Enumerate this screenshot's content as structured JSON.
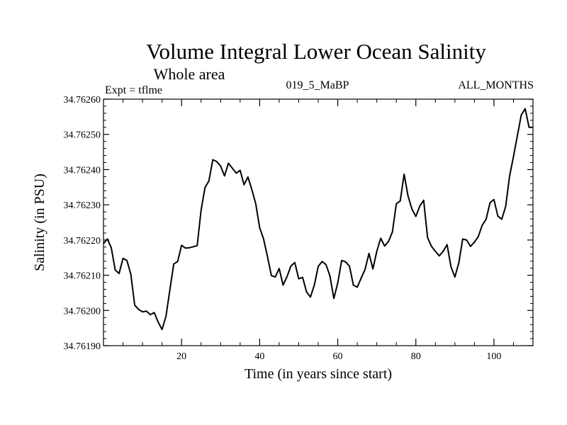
{
  "chart_data": {
    "type": "line",
    "title": "Volume Integral Lower Ocean Salinity",
    "subtitle": "Whole area",
    "annotations": {
      "left": "Expt = tflme",
      "center": "019_5_MaBP",
      "right": "ALL_MONTHS"
    },
    "xlabel": "Time (in years since start)",
    "ylabel": "Salinity (in PSU)",
    "xlim": [
      0,
      110
    ],
    "ylim": [
      34.7619,
      34.7626
    ],
    "xticks": [
      20,
      40,
      60,
      80,
      100
    ],
    "xtick_labels": [
      "20",
      "40",
      "60",
      "80",
      "100"
    ],
    "yticks": [
      34.7619,
      34.762,
      34.7621,
      34.7622,
      34.7623,
      34.7624,
      34.7625,
      34.7626
    ],
    "ytick_labels": [
      "34.76190",
      "34.76200",
      "34.76210",
      "34.76220",
      "34.76230",
      "34.76240",
      "34.76250",
      "34.76260"
    ],
    "series": [
      {
        "name": "salinity",
        "x": [
          0,
          1,
          2,
          3,
          4,
          5,
          6,
          7,
          8,
          9,
          10,
          11,
          12,
          13,
          14,
          15,
          16,
          17,
          18,
          19,
          20,
          21,
          22,
          23,
          24,
          25,
          26,
          27,
          28,
          29,
          30,
          31,
          32,
          33,
          34,
          35,
          36,
          37,
          38,
          39,
          40,
          41,
          42,
          43,
          44,
          45,
          46,
          47,
          48,
          49,
          50,
          51,
          52,
          53,
          54,
          55,
          56,
          57,
          58,
          59,
          60,
          61,
          62,
          63,
          64,
          65,
          66,
          67,
          68,
          69,
          70,
          71,
          72,
          73,
          74,
          75,
          76,
          77,
          78,
          79,
          80,
          81,
          82,
          83,
          84,
          85,
          86,
          87,
          88,
          89,
          90,
          91,
          92,
          93,
          94,
          95,
          96,
          97,
          98,
          99,
          100,
          101,
          102,
          103,
          104,
          105,
          106,
          107,
          108,
          109,
          110
        ],
        "y": [
          34.76219,
          34.762203,
          34.762178,
          34.762115,
          34.762105,
          34.762148,
          34.762142,
          34.762103,
          34.762015,
          34.762003,
          34.761996,
          34.761998,
          34.761988,
          34.761994,
          34.761967,
          34.761946,
          34.761983,
          34.762058,
          34.762132,
          34.762139,
          34.762185,
          34.762177,
          34.762178,
          34.762181,
          34.762184,
          34.762285,
          34.762349,
          34.762368,
          34.762428,
          34.762423,
          34.76241,
          34.762382,
          34.762418,
          34.762404,
          34.76239,
          34.762398,
          34.762357,
          34.762379,
          34.762343,
          34.762303,
          34.762235,
          34.762203,
          34.762153,
          34.762099,
          34.762095,
          34.762119,
          34.762072,
          34.762096,
          34.762126,
          34.762136,
          34.76209,
          34.762094,
          34.762053,
          34.762038,
          34.762072,
          34.762125,
          34.762139,
          34.76213,
          34.762098,
          34.762034,
          34.762078,
          34.762142,
          34.762138,
          34.762126,
          34.762072,
          34.762066,
          34.762092,
          34.762117,
          34.762162,
          34.762118,
          34.762168,
          34.762205,
          34.762183,
          34.762196,
          34.762223,
          34.762303,
          34.762311,
          34.762387,
          34.762325,
          34.762288,
          34.762267,
          34.762296,
          34.762313,
          34.762207,
          34.762182,
          34.762168,
          34.762155,
          34.762168,
          34.762187,
          34.762124,
          34.762095,
          34.762135,
          34.762203,
          34.7622,
          34.762182,
          34.762194,
          34.76221,
          34.762242,
          34.762259,
          34.762306,
          34.762315,
          34.762268,
          34.762259,
          34.762295,
          34.762381,
          34.762437,
          34.762496,
          34.762555,
          34.762573,
          34.76252,
          34.76252
        ]
      }
    ]
  }
}
